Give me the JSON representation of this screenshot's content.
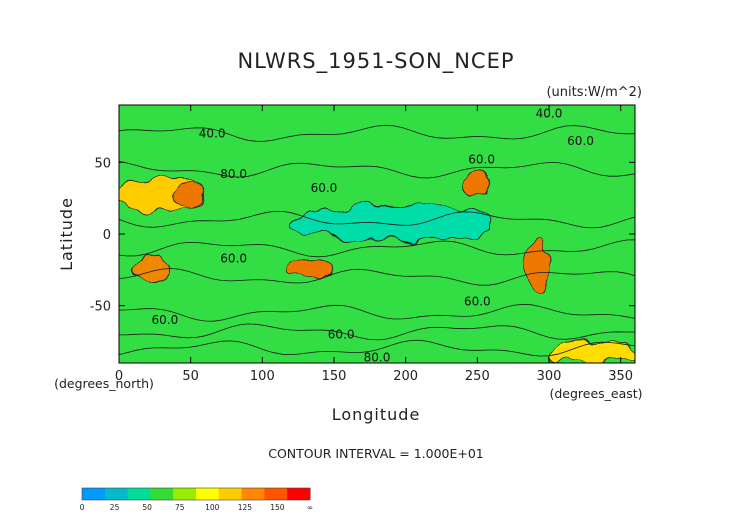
{
  "chart_data": {
    "type": "heatmap",
    "title": "NLWRS_1951-SON_NCEP",
    "units": "(units:W/m^2)",
    "xlabel": "Longitude",
    "ylabel": "Latitude",
    "x_unit_label": "(degrees_east)",
    "y_unit_label": "(degrees_north)",
    "xlim": [
      0,
      360
    ],
    "ylim": [
      -90,
      90
    ],
    "x_ticks": [
      0,
      50,
      100,
      150,
      200,
      250,
      300,
      350
    ],
    "y_ticks": [
      50,
      0,
      -50
    ],
    "contour_interval_label": "CONTOUR INTERVAL = 1.000E+01",
    "contour_labels": [
      {
        "text": "40.0",
        "lon": 65,
        "lat": 70
      },
      {
        "text": "80.0",
        "lon": 80,
        "lat": 42
      },
      {
        "text": "60.0",
        "lon": 143,
        "lat": 32
      },
      {
        "text": "60.0",
        "lon": 253,
        "lat": 52
      },
      {
        "text": "40.0",
        "lon": 300,
        "lat": 84
      },
      {
        "text": "60.0",
        "lon": 322,
        "lat": 65
      },
      {
        "text": "60.0",
        "lon": 80,
        "lat": -17
      },
      {
        "text": "60.0",
        "lon": 250,
        "lat": -47
      },
      {
        "text": "60.0",
        "lon": 32,
        "lat": -60
      },
      {
        "text": "60.0",
        "lon": 155,
        "lat": -70
      },
      {
        "text": "80.0",
        "lon": 180,
        "lat": -86
      }
    ],
    "colorbar": {
      "labels": [
        "0",
        "25",
        "50",
        "75",
        "100",
        "125",
        "150",
        "∞"
      ],
      "colors": [
        "#0099ff",
        "#00bbcc",
        "#00dd99",
        "#33dd33",
        "#99ee00",
        "#ffff00",
        "#ffcc00",
        "#ff8800",
        "#ff5500",
        "#ff0000"
      ]
    },
    "regions": [
      {
        "name": "base",
        "lon": [
          0,
          360
        ],
        "lat": [
          -90,
          90
        ],
        "value": 68,
        "color": "#33dd44"
      },
      {
        "name": "tropical-pacific-band",
        "lon": [
          120,
          260
        ],
        "lat": [
          -5,
          20
        ],
        "value": 45,
        "color": "#00ddaa"
      },
      {
        "name": "sahara",
        "lon": [
          0,
          60
        ],
        "lat": [
          15,
          40
        ],
        "value": 120,
        "color": "#ffcc00"
      },
      {
        "name": "arabia",
        "lon": [
          38,
          60
        ],
        "lat": [
          18,
          35
        ],
        "value": 140,
        "color": "#ee7700"
      },
      {
        "name": "north-america-sw",
        "lon": [
          240,
          260
        ],
        "lat": [
          25,
          42
        ],
        "value": 140,
        "color": "#ee7700"
      },
      {
        "name": "southern-africa",
        "lon": [
          10,
          35
        ],
        "lat": [
          -35,
          -15
        ],
        "value": 135,
        "color": "#ee8800"
      },
      {
        "name": "australia",
        "lon": [
          115,
          150
        ],
        "lat": [
          -32,
          -18
        ],
        "value": 140,
        "color": "#ee7700"
      },
      {
        "name": "andes",
        "lon": [
          285,
          300
        ],
        "lat": [
          -40,
          -5
        ],
        "value": 140,
        "color": "#ee7700"
      },
      {
        "name": "antarctic-coast",
        "lon": [
          300,
          360
        ],
        "lat": [
          -90,
          -75
        ],
        "value": 110,
        "color": "#ffdd00"
      }
    ]
  }
}
